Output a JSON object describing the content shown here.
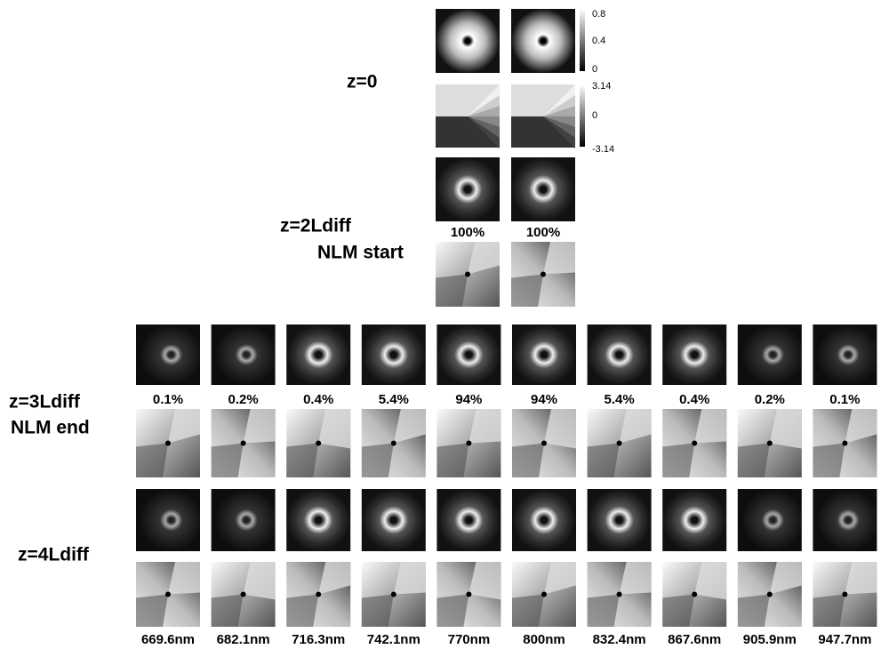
{
  "top": {
    "row_labels": [
      "z=0",
      "z=2Ldiff",
      "NLM start"
    ],
    "colorbars": [
      {
        "ticks": [
          "0.8",
          "0.4",
          "0"
        ]
      },
      {
        "ticks": [
          "3.14",
          "0",
          "-3.14"
        ]
      }
    ],
    "percentages": [
      "100%",
      "100%"
    ]
  },
  "bottom": {
    "row_labels": [
      "z=3Ldiff",
      "NLM end",
      "z=4Ldiff"
    ],
    "percentages": [
      "0.1%",
      "0.2%",
      "0.4%",
      "5.4%",
      "94%",
      "94%",
      "5.4%",
      "0.4%",
      "0.2%",
      "0.1%"
    ],
    "wavelengths": [
      "669.6nm",
      "682.1nm",
      "716.3nm",
      "742.1nm",
      "770nm",
      "800nm",
      "832.4nm",
      "867.6nm",
      "905.9nm",
      "947.7nm"
    ]
  }
}
